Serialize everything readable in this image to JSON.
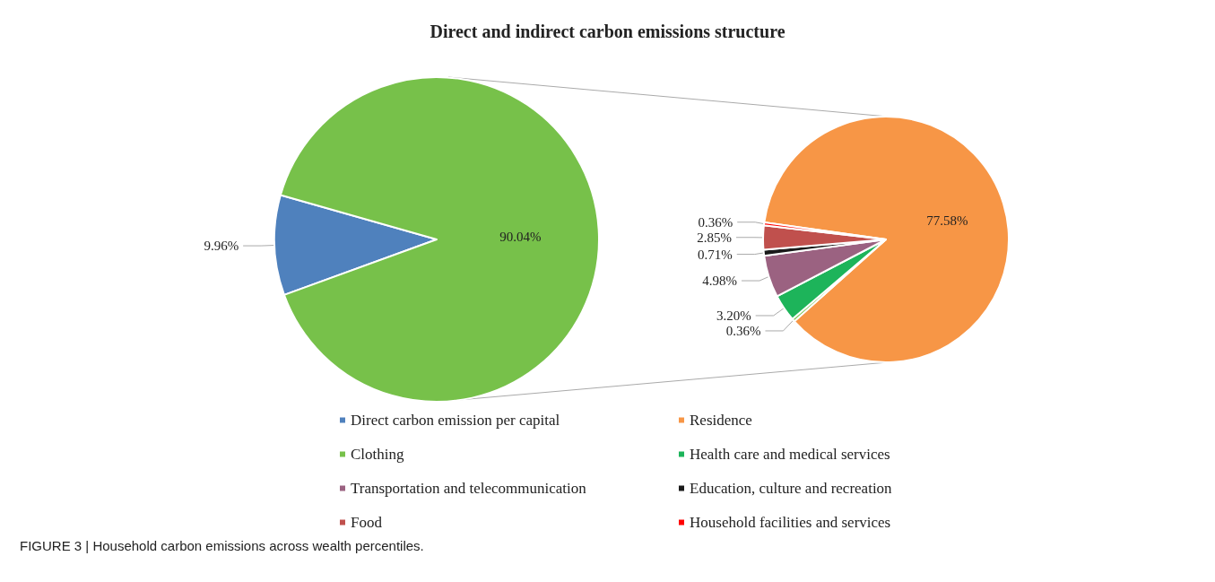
{
  "chart_data": [
    {
      "type": "pie",
      "title": "Direct and indirect carbon emissions structure",
      "categories": [
        "Direct carbon emission per capital",
        null
      ],
      "values": [
        9.96,
        90.04
      ],
      "colors": [
        "#4f81bd",
        "#77c14a"
      ],
      "value_labels": [
        "9.96%",
        "90.04%"
      ],
      "legend": "bottom",
      "annotations": [
        "FIGURE 3 | Household carbon emissions across wealth percentiles."
      ]
    },
    {
      "type": "pie",
      "categories": [
        "Residence",
        "Clothing",
        "Health care and medical services",
        "Transportation and telecommunication",
        "Education, culture and recreation",
        "Food",
        "Household facilities and services"
      ],
      "values": [
        77.58,
        0.36,
        3.2,
        4.98,
        0.71,
        2.85,
        0.36
      ],
      "colors": [
        "#f79646",
        "#77c14a",
        "#1db45a",
        "#9b6281",
        "#1a1a1a",
        "#c0504d",
        "#ff0000"
      ],
      "value_labels": [
        "77.58%",
        "0.36%",
        "3.20%",
        "4.98%",
        "0.71%",
        "2.85%",
        "0.36%"
      ],
      "legend": "bottom"
    }
  ]
}
